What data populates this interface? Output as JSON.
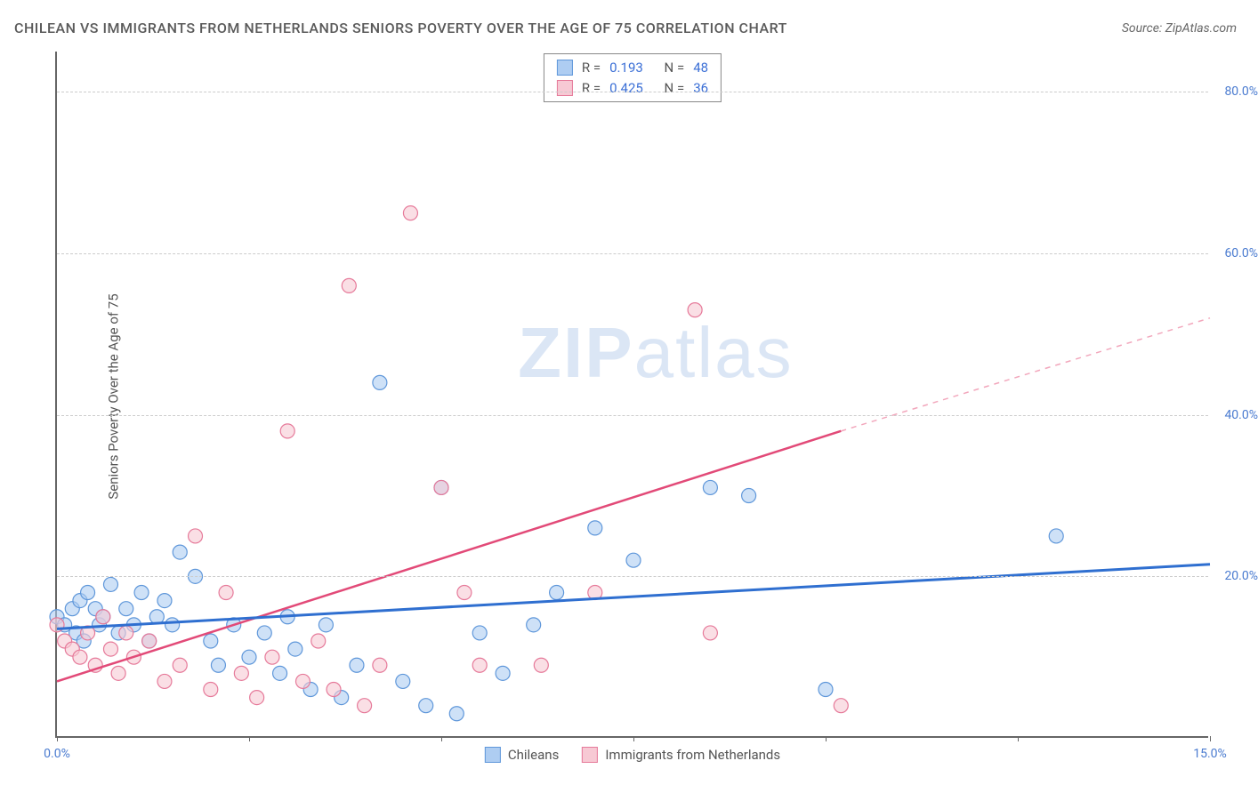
{
  "title": "CHILEAN VS IMMIGRANTS FROM NETHERLANDS SENIORS POVERTY OVER THE AGE OF 75 CORRELATION CHART",
  "source": "Source: ZipAtlas.com",
  "ylabel": "Seniors Poverty Over the Age of 75",
  "watermark_bold": "ZIP",
  "watermark_rest": "atlas",
  "chart": {
    "type": "scatter",
    "xlim": [
      0,
      15
    ],
    "ylim": [
      0,
      85
    ],
    "xticks": [
      0,
      2.5,
      5,
      7.5,
      10,
      12.5,
      15
    ],
    "xtick_labels": {
      "0": "0.0%",
      "15": "15.0%"
    },
    "yticks": [
      20,
      40,
      60,
      80
    ],
    "ytick_labels": [
      "20.0%",
      "40.0%",
      "60.0%",
      "80.0%"
    ],
    "grid_color": "#cccccc",
    "axis_color": "#666666",
    "background_color": "#ffffff",
    "label_color": "#4a7bd0"
  },
  "series": [
    {
      "name": "Chileans",
      "color_fill": "#aecdf2",
      "color_stroke": "#5f97da",
      "marker_radius": 8,
      "fill_opacity": 0.6,
      "R_label": "R =",
      "R": "0.193",
      "N_label": "N =",
      "N": "48",
      "trend": {
        "x1": 0,
        "y1": 13.5,
        "x2": 15,
        "y2": 21.5,
        "color": "#2f6fd0",
        "width": 3
      },
      "points": [
        [
          0.0,
          15
        ],
        [
          0.1,
          14
        ],
        [
          0.2,
          16
        ],
        [
          0.25,
          13
        ],
        [
          0.3,
          17
        ],
        [
          0.35,
          12
        ],
        [
          0.4,
          18
        ],
        [
          0.5,
          16
        ],
        [
          0.55,
          14
        ],
        [
          0.6,
          15
        ],
        [
          0.7,
          19
        ],
        [
          0.8,
          13
        ],
        [
          0.9,
          16
        ],
        [
          1.0,
          14
        ],
        [
          1.1,
          18
        ],
        [
          1.2,
          12
        ],
        [
          1.3,
          15
        ],
        [
          1.4,
          17
        ],
        [
          1.5,
          14
        ],
        [
          1.6,
          23
        ],
        [
          1.8,
          20
        ],
        [
          2.0,
          12
        ],
        [
          2.1,
          9
        ],
        [
          2.3,
          14
        ],
        [
          2.5,
          10
        ],
        [
          2.7,
          13
        ],
        [
          2.9,
          8
        ],
        [
          3.0,
          15
        ],
        [
          3.1,
          11
        ],
        [
          3.3,
          6
        ],
        [
          3.5,
          14
        ],
        [
          3.7,
          5
        ],
        [
          3.9,
          9
        ],
        [
          4.2,
          44
        ],
        [
          4.5,
          7
        ],
        [
          4.8,
          4
        ],
        [
          5.0,
          31
        ],
        [
          5.2,
          3
        ],
        [
          5.5,
          13
        ],
        [
          5.8,
          8
        ],
        [
          6.2,
          14
        ],
        [
          6.5,
          18
        ],
        [
          7.0,
          26
        ],
        [
          7.5,
          22
        ],
        [
          8.5,
          31
        ],
        [
          9.0,
          30
        ],
        [
          10.0,
          6
        ],
        [
          13.0,
          25
        ]
      ]
    },
    {
      "name": "Immigrants from Netherlands",
      "color_fill": "#f7c9d4",
      "color_stroke": "#e67a9a",
      "marker_radius": 8,
      "fill_opacity": 0.6,
      "R_label": "R =",
      "R": "0.425",
      "N_label": "N =",
      "N": "36",
      "trend_solid": {
        "x1": 0,
        "y1": 7,
        "x2": 10.2,
        "y2": 38,
        "color": "#e24a78",
        "width": 2.5
      },
      "trend_dash": {
        "x1": 10.2,
        "y1": 38,
        "x2": 15,
        "y2": 52,
        "color": "#f2a7bc",
        "width": 1.5
      },
      "points": [
        [
          0.0,
          14
        ],
        [
          0.1,
          12
        ],
        [
          0.2,
          11
        ],
        [
          0.3,
          10
        ],
        [
          0.4,
          13
        ],
        [
          0.5,
          9
        ],
        [
          0.6,
          15
        ],
        [
          0.7,
          11
        ],
        [
          0.8,
          8
        ],
        [
          0.9,
          13
        ],
        [
          1.0,
          10
        ],
        [
          1.2,
          12
        ],
        [
          1.4,
          7
        ],
        [
          1.6,
          9
        ],
        [
          1.8,
          25
        ],
        [
          2.0,
          6
        ],
        [
          2.2,
          18
        ],
        [
          2.4,
          8
        ],
        [
          2.6,
          5
        ],
        [
          2.8,
          10
        ],
        [
          3.0,
          38
        ],
        [
          3.2,
          7
        ],
        [
          3.4,
          12
        ],
        [
          3.6,
          6
        ],
        [
          3.8,
          56
        ],
        [
          4.0,
          4
        ],
        [
          4.2,
          9
        ],
        [
          4.6,
          65
        ],
        [
          5.0,
          31
        ],
        [
          5.3,
          18
        ],
        [
          5.5,
          9
        ],
        [
          6.3,
          9
        ],
        [
          7.0,
          18
        ],
        [
          8.3,
          53
        ],
        [
          8.5,
          13
        ],
        [
          10.2,
          4
        ]
      ]
    }
  ],
  "bottom_legend": [
    {
      "swatch_fill": "#aecdf2",
      "swatch_stroke": "#5f97da",
      "label": "Chileans"
    },
    {
      "swatch_fill": "#f7c9d4",
      "swatch_stroke": "#e67a9a",
      "label": "Immigrants from Netherlands"
    }
  ]
}
